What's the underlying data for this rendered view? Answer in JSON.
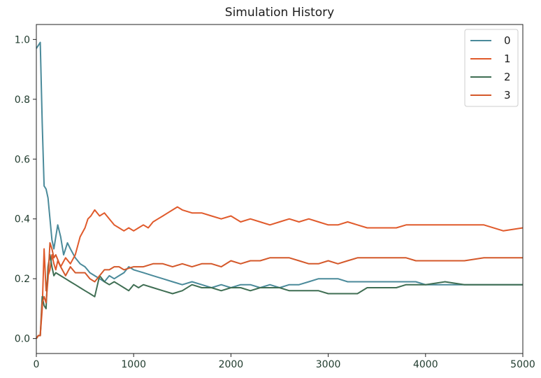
{
  "chart_data": {
    "type": "line",
    "title": "Simulation History",
    "xlabel": "",
    "ylabel": "",
    "xlim": [
      0,
      5000
    ],
    "ylim": [
      -0.05,
      1.05
    ],
    "x_ticks": [
      0,
      1000,
      2000,
      3000,
      4000,
      5000
    ],
    "x_tick_labels": [
      "0",
      "1000",
      "2000",
      "3000",
      "4000",
      "5000"
    ],
    "y_ticks": [
      0.0,
      0.2,
      0.4,
      0.6,
      0.8,
      1.0
    ],
    "y_tick_labels": [
      "0.0",
      "0.2",
      "0.4",
      "0.6",
      "0.8",
      "1.0"
    ],
    "grid": false,
    "legend_position": "top-right",
    "series": [
      {
        "name": "0",
        "color": "#4a8a9a",
        "points": [
          [
            0,
            0.97
          ],
          [
            20,
            0.98
          ],
          [
            40,
            0.99
          ],
          [
            60,
            0.72
          ],
          [
            80,
            0.51
          ],
          [
            100,
            0.5
          ],
          [
            120,
            0.47
          ],
          [
            140,
            0.4
          ],
          [
            160,
            0.33
          ],
          [
            180,
            0.3
          ],
          [
            200,
            0.34
          ],
          [
            220,
            0.38
          ],
          [
            250,
            0.34
          ],
          [
            280,
            0.28
          ],
          [
            300,
            0.3
          ],
          [
            320,
            0.32
          ],
          [
            350,
            0.3
          ],
          [
            400,
            0.27
          ],
          [
            450,
            0.25
          ],
          [
            500,
            0.24
          ],
          [
            550,
            0.22
          ],
          [
            600,
            0.21
          ],
          [
            650,
            0.2
          ],
          [
            700,
            0.19
          ],
          [
            750,
            0.21
          ],
          [
            800,
            0.2
          ],
          [
            850,
            0.21
          ],
          [
            900,
            0.22
          ],
          [
            950,
            0.24
          ],
          [
            1000,
            0.23
          ],
          [
            1100,
            0.22
          ],
          [
            1200,
            0.21
          ],
          [
            1300,
            0.2
          ],
          [
            1400,
            0.19
          ],
          [
            1500,
            0.18
          ],
          [
            1600,
            0.19
          ],
          [
            1700,
            0.18
          ],
          [
            1800,
            0.17
          ],
          [
            1900,
            0.18
          ],
          [
            2000,
            0.17
          ],
          [
            2100,
            0.18
          ],
          [
            2200,
            0.18
          ],
          [
            2300,
            0.17
          ],
          [
            2400,
            0.18
          ],
          [
            2500,
            0.17
          ],
          [
            2600,
            0.18
          ],
          [
            2700,
            0.18
          ],
          [
            2800,
            0.19
          ],
          [
            2900,
            0.2
          ],
          [
            3000,
            0.2
          ],
          [
            3100,
            0.2
          ],
          [
            3200,
            0.19
          ],
          [
            3300,
            0.19
          ],
          [
            3400,
            0.19
          ],
          [
            3500,
            0.19
          ],
          [
            3600,
            0.19
          ],
          [
            3700,
            0.19
          ],
          [
            3800,
            0.19
          ],
          [
            3900,
            0.19
          ],
          [
            4000,
            0.18
          ],
          [
            4200,
            0.18
          ],
          [
            4400,
            0.18
          ],
          [
            4600,
            0.18
          ],
          [
            4800,
            0.18
          ],
          [
            5000,
            0.18
          ]
        ]
      },
      {
        "name": "1",
        "color": "#e05a2b",
        "points": [
          [
            0,
            0.0
          ],
          [
            20,
            0.01
          ],
          [
            40,
            0.01
          ],
          [
            60,
            0.1
          ],
          [
            80,
            0.3
          ],
          [
            100,
            0.16
          ],
          [
            120,
            0.21
          ],
          [
            140,
            0.23
          ],
          [
            160,
            0.28
          ],
          [
            180,
            0.25
          ],
          [
            200,
            0.23
          ],
          [
            220,
            0.26
          ],
          [
            250,
            0.24
          ],
          [
            300,
            0.27
          ],
          [
            350,
            0.25
          ],
          [
            400,
            0.28
          ],
          [
            450,
            0.34
          ],
          [
            500,
            0.37
          ],
          [
            530,
            0.4
          ],
          [
            560,
            0.41
          ],
          [
            600,
            0.43
          ],
          [
            650,
            0.41
          ],
          [
            700,
            0.42
          ],
          [
            750,
            0.4
          ],
          [
            800,
            0.38
          ],
          [
            850,
            0.37
          ],
          [
            900,
            0.36
          ],
          [
            950,
            0.37
          ],
          [
            1000,
            0.36
          ],
          [
            1050,
            0.37
          ],
          [
            1100,
            0.38
          ],
          [
            1150,
            0.37
          ],
          [
            1200,
            0.39
          ],
          [
            1250,
            0.4
          ],
          [
            1300,
            0.41
          ],
          [
            1350,
            0.42
          ],
          [
            1400,
            0.43
          ],
          [
            1450,
            0.44
          ],
          [
            1500,
            0.43
          ],
          [
            1600,
            0.42
          ],
          [
            1700,
            0.42
          ],
          [
            1800,
            0.41
          ],
          [
            1900,
            0.4
          ],
          [
            2000,
            0.41
          ],
          [
            2100,
            0.39
          ],
          [
            2200,
            0.4
          ],
          [
            2300,
            0.39
          ],
          [
            2400,
            0.38
          ],
          [
            2500,
            0.39
          ],
          [
            2600,
            0.4
          ],
          [
            2700,
            0.39
          ],
          [
            2800,
            0.4
          ],
          [
            2900,
            0.39
          ],
          [
            3000,
            0.38
          ],
          [
            3100,
            0.38
          ],
          [
            3200,
            0.39
          ],
          [
            3300,
            0.38
          ],
          [
            3400,
            0.37
          ],
          [
            3500,
            0.37
          ],
          [
            3600,
            0.37
          ],
          [
            3700,
            0.37
          ],
          [
            3800,
            0.38
          ],
          [
            3900,
            0.38
          ],
          [
            4000,
            0.38
          ],
          [
            4200,
            0.38
          ],
          [
            4400,
            0.38
          ],
          [
            4600,
            0.38
          ],
          [
            4800,
            0.36
          ],
          [
            5000,
            0.37
          ]
        ]
      },
      {
        "name": "2",
        "color": "#3f6e53",
        "points": [
          [
            0,
            0.0
          ],
          [
            20,
            0.01
          ],
          [
            40,
            0.01
          ],
          [
            60,
            0.14
          ],
          [
            80,
            0.11
          ],
          [
            100,
            0.1
          ],
          [
            120,
            0.24
          ],
          [
            140,
            0.28
          ],
          [
            160,
            0.24
          ],
          [
            180,
            0.21
          ],
          [
            200,
            0.22
          ],
          [
            250,
            0.21
          ],
          [
            300,
            0.2
          ],
          [
            350,
            0.19
          ],
          [
            400,
            0.18
          ],
          [
            450,
            0.17
          ],
          [
            500,
            0.16
          ],
          [
            550,
            0.15
          ],
          [
            600,
            0.14
          ],
          [
            650,
            0.21
          ],
          [
            700,
            0.19
          ],
          [
            750,
            0.18
          ],
          [
            800,
            0.19
          ],
          [
            850,
            0.18
          ],
          [
            900,
            0.17
          ],
          [
            950,
            0.16
          ],
          [
            1000,
            0.18
          ],
          [
            1050,
            0.17
          ],
          [
            1100,
            0.18
          ],
          [
            1200,
            0.17
          ],
          [
            1300,
            0.16
          ],
          [
            1400,
            0.15
          ],
          [
            1500,
            0.16
          ],
          [
            1600,
            0.18
          ],
          [
            1700,
            0.17
          ],
          [
            1800,
            0.17
          ],
          [
            1900,
            0.16
          ],
          [
            2000,
            0.17
          ],
          [
            2100,
            0.17
          ],
          [
            2200,
            0.16
          ],
          [
            2300,
            0.17
          ],
          [
            2400,
            0.17
          ],
          [
            2500,
            0.17
          ],
          [
            2600,
            0.16
          ],
          [
            2700,
            0.16
          ],
          [
            2800,
            0.16
          ],
          [
            2900,
            0.16
          ],
          [
            3000,
            0.15
          ],
          [
            3100,
            0.15
          ],
          [
            3200,
            0.15
          ],
          [
            3300,
            0.15
          ],
          [
            3400,
            0.17
          ],
          [
            3500,
            0.17
          ],
          [
            3600,
            0.17
          ],
          [
            3700,
            0.17
          ],
          [
            3800,
            0.18
          ],
          [
            3900,
            0.18
          ],
          [
            4000,
            0.18
          ],
          [
            4200,
            0.19
          ],
          [
            4400,
            0.18
          ],
          [
            4600,
            0.18
          ],
          [
            4800,
            0.18
          ],
          [
            5000,
            0.18
          ]
        ]
      },
      {
        "name": "3",
        "color": "#d4582a",
        "points": [
          [
            0,
            0.0
          ],
          [
            20,
            0.01
          ],
          [
            40,
            0.01
          ],
          [
            60,
            0.12
          ],
          [
            80,
            0.14
          ],
          [
            100,
            0.12
          ],
          [
            120,
            0.2
          ],
          [
            140,
            0.32
          ],
          [
            160,
            0.3
          ],
          [
            180,
            0.27
          ],
          [
            200,
            0.28
          ],
          [
            250,
            0.24
          ],
          [
            300,
            0.21
          ],
          [
            350,
            0.24
          ],
          [
            400,
            0.22
          ],
          [
            450,
            0.22
          ],
          [
            500,
            0.22
          ],
          [
            550,
            0.2
          ],
          [
            600,
            0.19
          ],
          [
            650,
            0.21
          ],
          [
            700,
            0.23
          ],
          [
            750,
            0.23
          ],
          [
            800,
            0.24
          ],
          [
            850,
            0.24
          ],
          [
            900,
            0.23
          ],
          [
            1000,
            0.24
          ],
          [
            1100,
            0.24
          ],
          [
            1200,
            0.25
          ],
          [
            1300,
            0.25
          ],
          [
            1400,
            0.24
          ],
          [
            1500,
            0.25
          ],
          [
            1600,
            0.24
          ],
          [
            1700,
            0.25
          ],
          [
            1800,
            0.25
          ],
          [
            1900,
            0.24
          ],
          [
            2000,
            0.26
          ],
          [
            2100,
            0.25
          ],
          [
            2200,
            0.26
          ],
          [
            2300,
            0.26
          ],
          [
            2400,
            0.27
          ],
          [
            2500,
            0.27
          ],
          [
            2600,
            0.27
          ],
          [
            2700,
            0.26
          ],
          [
            2800,
            0.25
          ],
          [
            2900,
            0.25
          ],
          [
            3000,
            0.26
          ],
          [
            3100,
            0.25
          ],
          [
            3200,
            0.26
          ],
          [
            3300,
            0.27
          ],
          [
            3400,
            0.27
          ],
          [
            3500,
            0.27
          ],
          [
            3600,
            0.27
          ],
          [
            3700,
            0.27
          ],
          [
            3800,
            0.27
          ],
          [
            3900,
            0.26
          ],
          [
            4000,
            0.26
          ],
          [
            4200,
            0.26
          ],
          [
            4400,
            0.26
          ],
          [
            4600,
            0.27
          ],
          [
            4800,
            0.27
          ],
          [
            5000,
            0.27
          ]
        ]
      }
    ]
  }
}
